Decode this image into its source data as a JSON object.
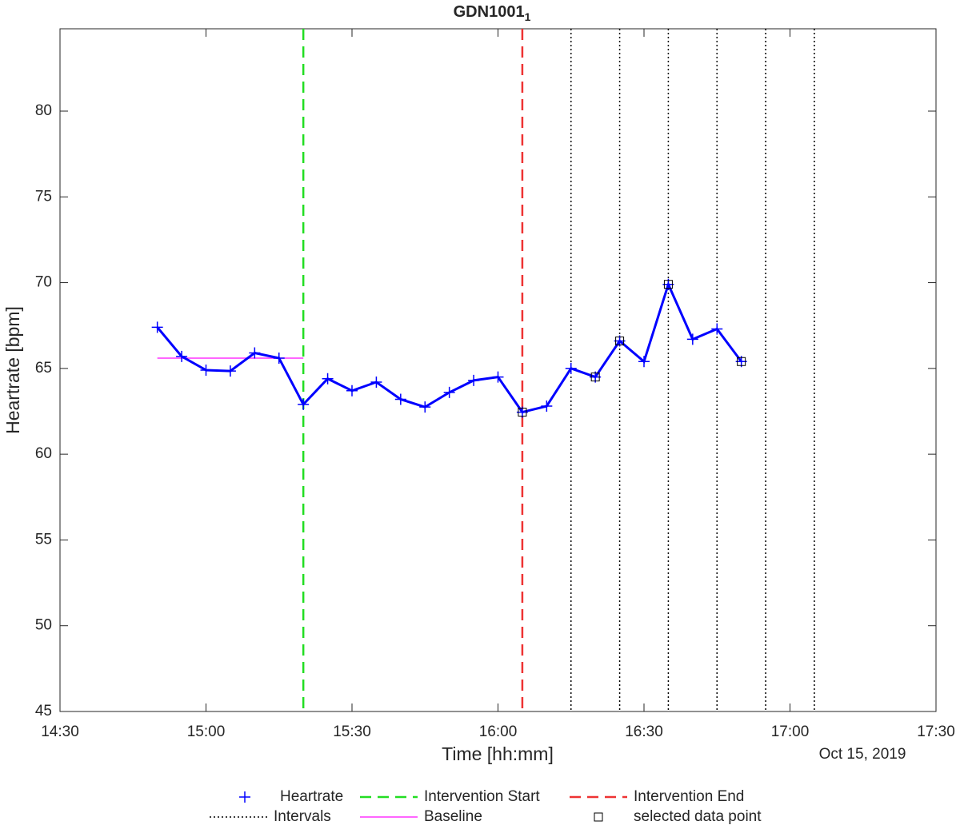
{
  "chart_data": {
    "type": "line",
    "title": "GDN1001",
    "title_subscript": "1",
    "xlabel": "Time [hh:mm]",
    "ylabel": "Heartrate [bpm]",
    "date_label": "Oct 15, 2019",
    "xlim": [
      "14:30",
      "17:30"
    ],
    "xticks": [
      "14:30",
      "15:00",
      "15:30",
      "16:00",
      "16:30",
      "17:00",
      "17:30"
    ],
    "ylim": [
      45,
      84.8
    ],
    "yticks": [
      45,
      50,
      55,
      60,
      65,
      70,
      75,
      80
    ],
    "series": [
      {
        "name": "Heartrate",
        "color": "#0000ff",
        "x": [
          "14:50",
          "14:55",
          "15:00",
          "15:05",
          "15:10",
          "15:15",
          "15:20",
          "15:25",
          "15:30",
          "15:35",
          "15:40",
          "15:45",
          "15:50",
          "15:55",
          "16:00",
          "16:05",
          "16:10",
          "16:15",
          "16:20",
          "16:25",
          "16:30",
          "16:35",
          "16:40",
          "16:45",
          "16:50"
        ],
        "values": [
          67.4,
          65.7,
          64.9,
          64.85,
          65.9,
          65.6,
          62.9,
          64.4,
          63.7,
          64.2,
          63.2,
          62.75,
          63.6,
          64.3,
          64.5,
          62.45,
          62.8,
          65.0,
          64.5,
          66.6,
          65.4,
          69.9,
          66.7,
          67.3,
          65.4
        ]
      },
      {
        "name": "Baseline",
        "color": "#ff33ff",
        "x": [
          "14:50",
          "15:20"
        ],
        "values": [
          65.6,
          65.6
        ]
      }
    ],
    "vlines": [
      {
        "name": "Intervention Start",
        "color": "#22dd22",
        "style": "dashed",
        "x": [
          "15:20"
        ]
      },
      {
        "name": "Intervention End",
        "color": "#ee3333",
        "style": "dashed",
        "x": [
          "16:05"
        ]
      },
      {
        "name": "Intervals",
        "color": "#000000",
        "style": "dotted",
        "x": [
          "16:15",
          "16:25",
          "16:35",
          "16:45",
          "16:55",
          "17:05"
        ]
      }
    ],
    "selected": {
      "name": "selected data point",
      "color": "#000000",
      "x": [
        "16:05",
        "16:20",
        "16:25",
        "16:35",
        "16:50"
      ],
      "values": [
        62.45,
        64.5,
        66.6,
        69.9,
        65.4
      ]
    }
  }
}
